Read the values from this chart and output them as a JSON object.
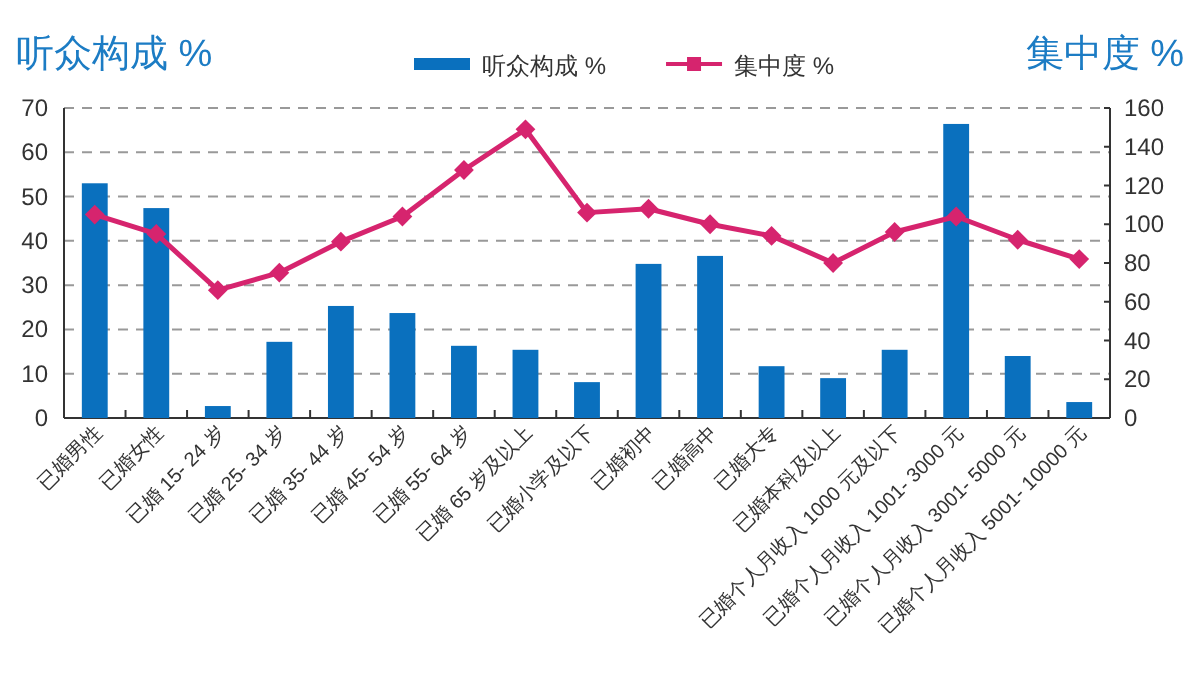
{
  "chart_data": {
    "type": "bar",
    "ylabel": "听众构成 %",
    "y2label": "集中度 %",
    "categories": [
      "已婚男性",
      "已婚女性",
      "已婚 15- 24 岁",
      "已婚 25- 34 岁",
      "已婚 35- 44 岁",
      "已婚 45- 54 岁",
      "已婚 55- 64 岁",
      "已婚 65 岁及以上",
      "已婚小学及以下",
      "已婚初中",
      "已婚高中",
      "已婚大专",
      "已婚本科及以上",
      "已婚个人月收入 1000 元及以下",
      "已婚个人月收入 1001- 3000 元",
      "已婚个人月收入 3001- 5000 元",
      "已婚个人月收入 5001- 10000 元"
    ],
    "series": [
      {
        "name": "听众构成 %",
        "axis": "y",
        "color": "#0a70be",
        "values": [
          53,
          47.4,
          2.7,
          17.2,
          25.3,
          23.7,
          16.3,
          15.4,
          8.1,
          34.8,
          36.6,
          11.7,
          9,
          15.4,
          66.4,
          14,
          3.6
        ]
      },
      {
        "name": "集中度 %",
        "type": "line",
        "axis": "y2",
        "color": "#d6246e",
        "marker": "diamond",
        "values": [
          105,
          95,
          66,
          75,
          91,
          104,
          128,
          149,
          106,
          108,
          100,
          94,
          80,
          96,
          104,
          92,
          82
        ]
      }
    ],
    "ylim": [
      0,
      70
    ],
    "yticks": [
      0,
      10,
      20,
      30,
      40,
      50,
      60,
      70
    ],
    "y2lim": [
      0,
      160
    ],
    "y2ticks": [
      0,
      20,
      40,
      60,
      80,
      100,
      120,
      140,
      160
    ],
    "grid": "y",
    "legend": "top"
  }
}
